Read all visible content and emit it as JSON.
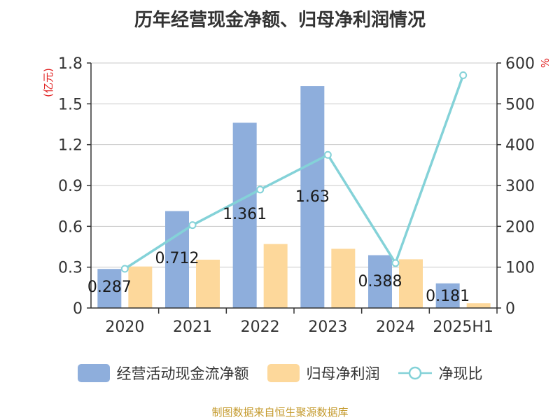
{
  "title": "历年经营现金净额、归母净利润情况",
  "source_note": "制图数据来自恒生聚源数据库",
  "colors": {
    "cash_flow": "#8eaedc",
    "net_profit": "#fdd89b",
    "ratio_line": "#84d2d8",
    "left_unit": "#e02020",
    "right_unit": "#e02020",
    "axis": "#333333",
    "grid": "#c8c8c8"
  },
  "chart_data": {
    "type": "bar",
    "categories": [
      "2020",
      "2021",
      "2022",
      "2023",
      "2024",
      "2025H1"
    ],
    "left_axis": {
      "unit": "(亿元)",
      "ylim": [
        0,
        1.8
      ],
      "ticks": [
        "0",
        "0.3",
        "0.6",
        "0.9",
        "1.2",
        "1.5",
        "1.8"
      ]
    },
    "right_axis": {
      "unit": "%",
      "ylim": [
        0,
        600
      ],
      "ticks": [
        "0",
        "100",
        "200",
        "300",
        "400",
        "500",
        "600"
      ]
    },
    "grid": true,
    "legend_position": "bottom",
    "series": [
      {
        "name": "经营活动现金流净额",
        "type": "bar",
        "axis": "left",
        "values": [
          0.287,
          0.712,
          1.361,
          1.63,
          0.388,
          0.181
        ],
        "labels": [
          "0.287",
          "0.712",
          "1.361",
          "1.63",
          "0.388",
          "0.181"
        ]
      },
      {
        "name": "归母净利润",
        "type": "bar",
        "axis": "left",
        "values": [
          0.305,
          0.355,
          0.47,
          0.435,
          0.358,
          0.035
        ]
      },
      {
        "name": "净现比",
        "type": "line",
        "axis": "right",
        "values": [
          96,
          203,
          290,
          375,
          110,
          570
        ]
      }
    ]
  }
}
